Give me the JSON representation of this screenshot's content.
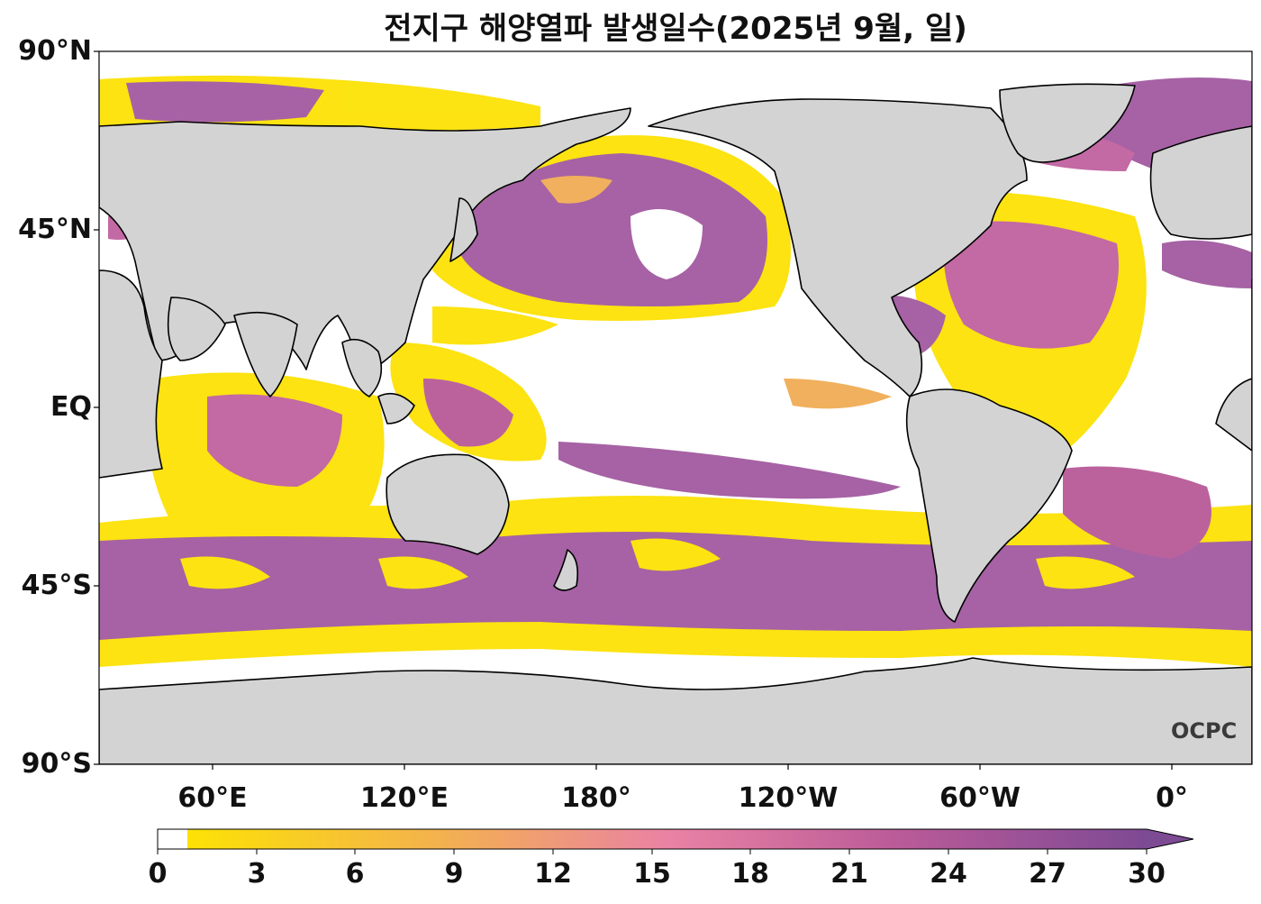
{
  "title": "전지구 해양열파 발생일수(2025년 9월, 일)",
  "axes": {
    "lat_labels": [
      "90°N",
      "45°N",
      "EQ",
      "45°S",
      "90°S"
    ],
    "lon_labels": [
      "60°E",
      "120°E",
      "180°",
      "120°W",
      "60°W",
      "0°"
    ]
  },
  "colorbar": {
    "ticks": [
      "0",
      "3",
      "6",
      "9",
      "12",
      "15",
      "18",
      "21",
      "24",
      "27",
      "30"
    ],
    "range": [
      0,
      30
    ],
    "extend": "max",
    "colors": {
      "zero": "#ffffff",
      "low": "#fce205",
      "mid": "#e879a3",
      "high": "#7d4a94"
    }
  },
  "map": {
    "projection": "equirectangular, centered on 200°E",
    "land_color": "#d3d3d3",
    "coastline_color": "#000000",
    "no_heatwave_color": "#ffffff"
  },
  "watermark": "OCPC"
}
